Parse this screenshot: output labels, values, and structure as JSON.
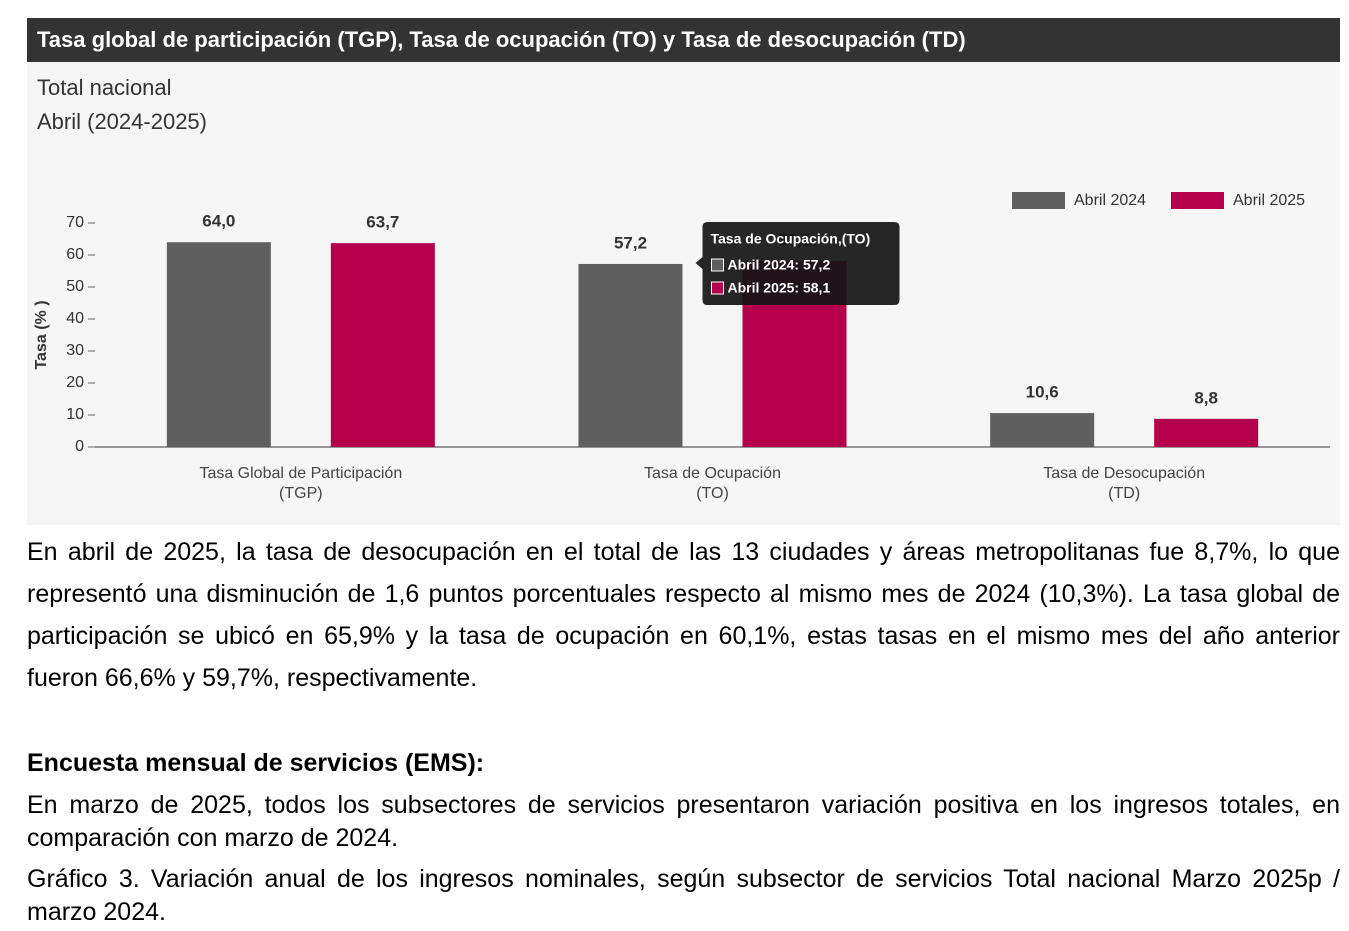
{
  "chart_data": {
    "type": "bar",
    "title": "Tasa global de participación (TGP), Tasa de ocupación (TO) y Tasa de desocupación (TD)",
    "subtitle": [
      "Total nacional",
      "Abril (2024-2025)"
    ],
    "y_label": "Tasa (% )",
    "categories": [
      [
        "Tasa Global de Participación",
        "(TGP)"
      ],
      [
        "Tasa de Ocupación",
        "(TO)"
      ],
      [
        "Tasa de Desocupación",
        "(TD)"
      ]
    ],
    "series": [
      {
        "name": "Abril 2024",
        "color": "#5f5f5f",
        "values": [
          64.0,
          57.2,
          10.6
        ],
        "value_labels": [
          "64,0",
          "57,2",
          "10,6"
        ]
      },
      {
        "name": "Abril 2025",
        "color": "#b5004b",
        "values": [
          63.7,
          58.1,
          8.8
        ],
        "value_labels": [
          "63,7",
          "58,1",
          "8,8"
        ]
      }
    ],
    "ylim": [
      0,
      70
    ],
    "yticks": [
      0,
      10,
      20,
      30,
      40,
      50,
      60,
      70
    ],
    "grid": false,
    "legend": "top-right",
    "tooltip": {
      "category": 1,
      "title": "Tasa de Ocupación,(TO)",
      "items": [
        "Abril 2024: 57,2",
        "Abril 2025: 58,1"
      ]
    }
  },
  "paragraphs": [
    "En abril de 2025, la tasa de desocupación en el total de las 13 ciudades y áreas metropolitanas fue 8,7%, lo que representó una disminución de 1,6 puntos porcentuales respecto al mismo mes de 2024 (10,3%). La tasa global de participación se ubicó en 65,9% y la tasa de ocupación en 60,1%, estas tasas en el mismo mes del año anterior fueron 66,6% y 59,7%, respectivamente.",
    "Encuesta mensual de servicios (EMS):",
    "En marzo de 2025, todos los subsectores de servicios presentaron variación positiva en los ingresos totales, en comparación con marzo de 2024.",
    "Gráfico 3. Variación anual de los ingresos nominales, según subsector de servicios Total nacional Marzo 2025p / marzo 2024."
  ]
}
